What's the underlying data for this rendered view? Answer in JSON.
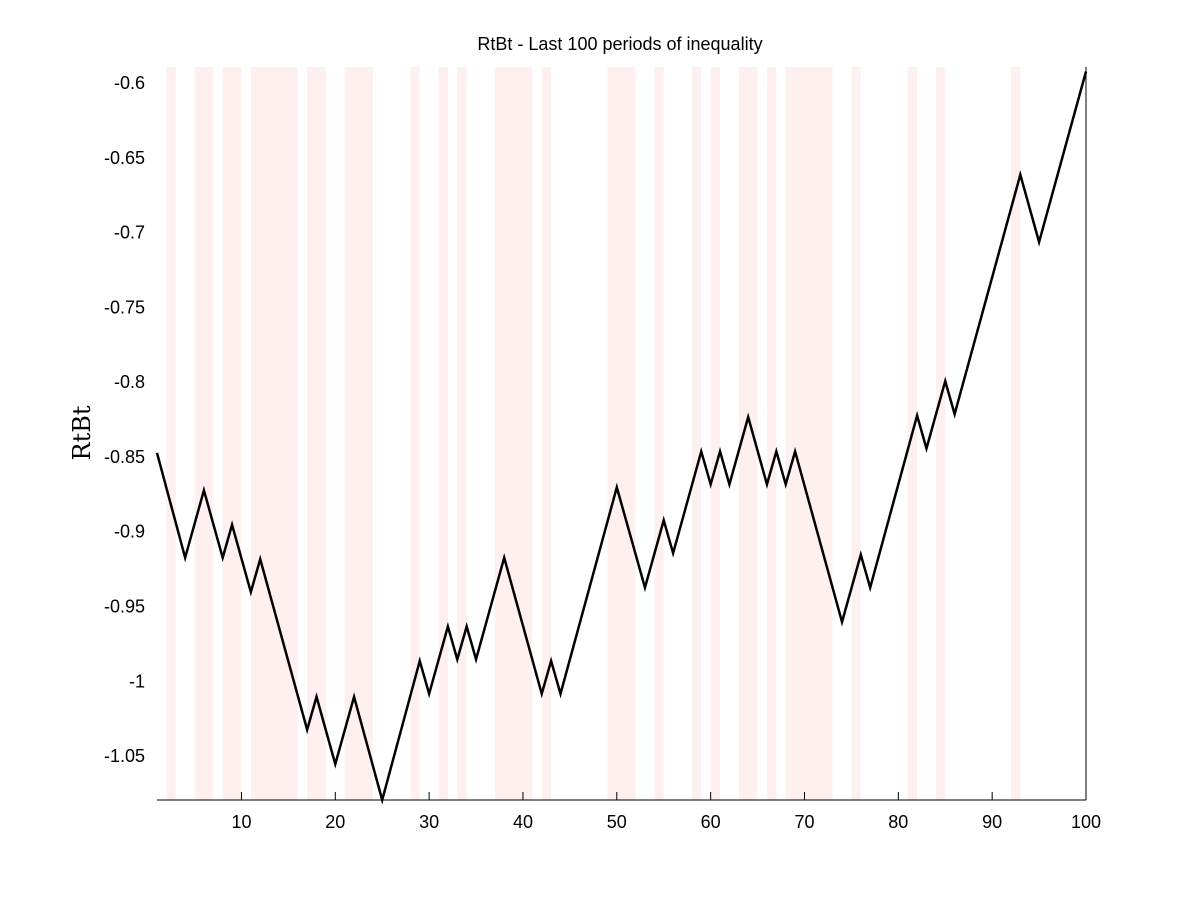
{
  "chart_data": {
    "type": "line",
    "title": "RtBt - Last 100 periods of inequality",
    "xlabel": "",
    "ylabel": "RtBt",
    "xlim": [
      1,
      100
    ],
    "ylim": [
      -1.08,
      -0.59
    ],
    "x_ticks": [
      10,
      20,
      30,
      40,
      50,
      60,
      70,
      80,
      90,
      100
    ],
    "y_ticks": [
      -0.6,
      -0.65,
      -0.7,
      -0.75,
      -0.8,
      -0.85,
      -0.9,
      -0.95,
      -1,
      -1.05
    ],
    "x_tick_labels": [
      "10",
      "20",
      "30",
      "40",
      "50",
      "60",
      "70",
      "80",
      "90",
      "100"
    ],
    "y_tick_labels": [
      "-0.6",
      "-0.65",
      "-0.7",
      "-0.75",
      "-0.8",
      "-0.85",
      "-0.9",
      "-0.95",
      "-1",
      "-1.05"
    ],
    "grid": false,
    "line_color": "#000000",
    "shade_color": "#fff0f0",
    "shaded_periods": [
      [
        2,
        3
      ],
      [
        5,
        7
      ],
      [
        8,
        10
      ],
      [
        11,
        16
      ],
      [
        17,
        19
      ],
      [
        21,
        24
      ],
      [
        28,
        29
      ],
      [
        31,
        32
      ],
      [
        33,
        34
      ],
      [
        37,
        41
      ],
      [
        42,
        43
      ],
      [
        49,
        52
      ],
      [
        54,
        55
      ],
      [
        58,
        59
      ],
      [
        60,
        61
      ],
      [
        63,
        65
      ],
      [
        66,
        67
      ],
      [
        68,
        73
      ],
      [
        75,
        76
      ],
      [
        81,
        82
      ],
      [
        84,
        85
      ],
      [
        92,
        93
      ]
    ],
    "series": [
      {
        "x": [
          1,
          4,
          6,
          8,
          9,
          11,
          12,
          17,
          18,
          20,
          22,
          25,
          29,
          30,
          32,
          33,
          34,
          35,
          38,
          42,
          43,
          44,
          50,
          53,
          55,
          56,
          59,
          60,
          61,
          62,
          64,
          66,
          67,
          68,
          69,
          74,
          76,
          77,
          82,
          83,
          85,
          86,
          93,
          95,
          100
        ],
        "values": [
          -0.848,
          -0.918,
          -0.873,
          -0.918,
          -0.896,
          -0.941,
          -0.919,
          -1.033,
          -1.011,
          -1.056,
          -1.011,
          -1.08,
          -0.987,
          -1.009,
          -0.964,
          -0.986,
          -0.964,
          -0.986,
          -0.918,
          -1.009,
          -0.987,
          -1.009,
          -0.871,
          -0.938,
          -0.893,
          -0.915,
          -0.847,
          -0.869,
          -0.847,
          -0.869,
          -0.824,
          -0.869,
          -0.847,
          -0.869,
          -0.847,
          -0.961,
          -0.916,
          -0.938,
          -0.823,
          -0.845,
          -0.8,
          -0.822,
          -0.662,
          -0.707,
          -0.593
        ]
      }
    ]
  }
}
